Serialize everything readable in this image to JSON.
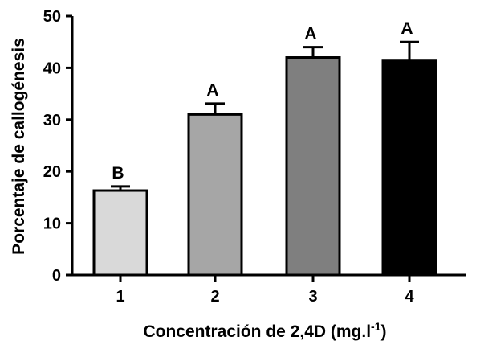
{
  "chart_data": {
    "type": "bar",
    "categories": [
      "1",
      "2",
      "3",
      "4"
    ],
    "values": [
      16.3,
      31.0,
      42.0,
      41.5
    ],
    "errors": [
      0.8,
      2.1,
      2.0,
      3.5
    ],
    "group_labels": [
      "B",
      "A",
      "A",
      "A"
    ],
    "bar_colors": [
      "#d9d9d9",
      "#a6a6a6",
      "#7f7f7f",
      "#000000"
    ],
    "ylabel": "Porcentaje de callogénesis",
    "xlabel": {
      "main": "Concentración de 2,4D (mg.l",
      "superscript": "-1",
      "suffix": ")"
    },
    "ylim": [
      0,
      50
    ],
    "yticks": [
      "0",
      "10",
      "20",
      "30",
      "40",
      "50"
    ],
    "grid": false
  }
}
